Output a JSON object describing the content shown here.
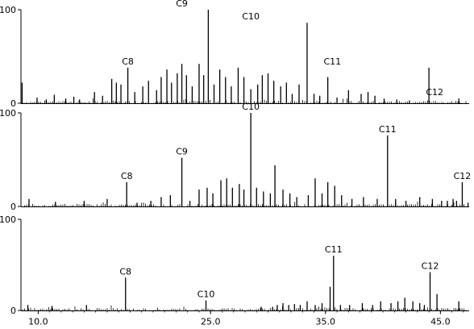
{
  "chart_data": {
    "type": "line",
    "xlim": [
      8.5,
      47.5
    ],
    "ylim": [
      0,
      100
    ],
    "x_ticks": [
      {
        "value": 10,
        "label": "10.0"
      },
      {
        "value": 25,
        "label": "25.0"
      },
      {
        "value": 35,
        "label": "35.0"
      },
      {
        "value": 45,
        "label": "45.0"
      }
    ],
    "y_ticks": [
      {
        "value": 0,
        "label": "0"
      },
      {
        "value": 100,
        "label": "100"
      }
    ],
    "panels": [
      {
        "peaks": [
          {
            "x": 8.6,
            "y": 22
          },
          {
            "x": 9.9,
            "y": 6
          },
          {
            "x": 10.7,
            "y": 4
          },
          {
            "x": 11.4,
            "y": 9
          },
          {
            "x": 12.4,
            "y": 5
          },
          {
            "x": 13.1,
            "y": 7
          },
          {
            "x": 13.6,
            "y": 4
          },
          {
            "x": 14.9,
            "y": 12
          },
          {
            "x": 15.6,
            "y": 8
          },
          {
            "x": 16.4,
            "y": 26
          },
          {
            "x": 16.8,
            "y": 22
          },
          {
            "x": 17.2,
            "y": 20
          },
          {
            "x": 17.8,
            "y": 38
          },
          {
            "x": 18.4,
            "y": 12
          },
          {
            "x": 19.1,
            "y": 18
          },
          {
            "x": 19.6,
            "y": 24
          },
          {
            "x": 20.3,
            "y": 14
          },
          {
            "x": 20.7,
            "y": 28
          },
          {
            "x": 21.2,
            "y": 36
          },
          {
            "x": 21.6,
            "y": 22
          },
          {
            "x": 22.1,
            "y": 32
          },
          {
            "x": 22.5,
            "y": 42
          },
          {
            "x": 22.9,
            "y": 30
          },
          {
            "x": 23.4,
            "y": 18
          },
          {
            "x": 24.0,
            "y": 42
          },
          {
            "x": 24.4,
            "y": 30
          },
          {
            "x": 24.8,
            "y": 100
          },
          {
            "x": 25.3,
            "y": 20
          },
          {
            "x": 25.8,
            "y": 36
          },
          {
            "x": 26.3,
            "y": 28
          },
          {
            "x": 26.8,
            "y": 18
          },
          {
            "x": 27.4,
            "y": 38
          },
          {
            "x": 27.9,
            "y": 28
          },
          {
            "x": 28.5,
            "y": 15
          },
          {
            "x": 29.1,
            "y": 20
          },
          {
            "x": 29.5,
            "y": 30
          },
          {
            "x": 30.0,
            "y": 32
          },
          {
            "x": 30.5,
            "y": 24
          },
          {
            "x": 31.1,
            "y": 18
          },
          {
            "x": 31.6,
            "y": 22
          },
          {
            "x": 32.1,
            "y": 10
          },
          {
            "x": 32.7,
            "y": 20
          },
          {
            "x": 33.4,
            "y": 86
          },
          {
            "x": 34.0,
            "y": 10
          },
          {
            "x": 34.5,
            "y": 8
          },
          {
            "x": 35.2,
            "y": 28
          },
          {
            "x": 36.0,
            "y": 6
          },
          {
            "x": 37.0,
            "y": 14
          },
          {
            "x": 38.1,
            "y": 10
          },
          {
            "x": 38.7,
            "y": 12
          },
          {
            "x": 39.3,
            "y": 8
          },
          {
            "x": 40.1,
            "y": 5
          },
          {
            "x": 41.2,
            "y": 4
          },
          {
            "x": 42.3,
            "y": 3
          },
          {
            "x": 44.0,
            "y": 38
          },
          {
            "x": 46.6,
            "y": 5
          }
        ],
        "labels": [
          {
            "text": "C8",
            "x": 17.8,
            "y": 38
          },
          {
            "text": "C9",
            "x": 22.5,
            "y": 100
          },
          {
            "text": "C10",
            "x": 28.5,
            "y": 86
          },
          {
            "text": "C11",
            "x": 35.6,
            "y": 38
          },
          {
            "text": "C12",
            "x": 44.5,
            "y": 5
          }
        ]
      },
      {
        "peaks": [
          {
            "x": 9.2,
            "y": 8
          },
          {
            "x": 11.5,
            "y": 5
          },
          {
            "x": 14.0,
            "y": 6
          },
          {
            "x": 16.0,
            "y": 8
          },
          {
            "x": 17.7,
            "y": 26
          },
          {
            "x": 18.6,
            "y": 4
          },
          {
            "x": 19.8,
            "y": 6
          },
          {
            "x": 20.7,
            "y": 10
          },
          {
            "x": 21.5,
            "y": 12
          },
          {
            "x": 22.5,
            "y": 52
          },
          {
            "x": 23.2,
            "y": 6
          },
          {
            "x": 24.0,
            "y": 18
          },
          {
            "x": 24.7,
            "y": 20
          },
          {
            "x": 25.2,
            "y": 14
          },
          {
            "x": 25.9,
            "y": 28
          },
          {
            "x": 26.4,
            "y": 30
          },
          {
            "x": 26.9,
            "y": 20
          },
          {
            "x": 27.5,
            "y": 24
          },
          {
            "x": 27.9,
            "y": 18
          },
          {
            "x": 28.5,
            "y": 100
          },
          {
            "x": 29.0,
            "y": 20
          },
          {
            "x": 29.6,
            "y": 16
          },
          {
            "x": 30.2,
            "y": 14
          },
          {
            "x": 30.6,
            "y": 44
          },
          {
            "x": 31.3,
            "y": 18
          },
          {
            "x": 31.9,
            "y": 14
          },
          {
            "x": 32.5,
            "y": 10
          },
          {
            "x": 33.5,
            "y": 12
          },
          {
            "x": 34.1,
            "y": 30
          },
          {
            "x": 34.7,
            "y": 14
          },
          {
            "x": 35.2,
            "y": 26
          },
          {
            "x": 35.8,
            "y": 22
          },
          {
            "x": 36.4,
            "y": 12
          },
          {
            "x": 37.3,
            "y": 8
          },
          {
            "x": 38.3,
            "y": 10
          },
          {
            "x": 39.5,
            "y": 8
          },
          {
            "x": 40.4,
            "y": 76
          },
          {
            "x": 41.1,
            "y": 8
          },
          {
            "x": 42.0,
            "y": 6
          },
          {
            "x": 43.2,
            "y": 10
          },
          {
            "x": 44.3,
            "y": 8
          },
          {
            "x": 45.1,
            "y": 6
          },
          {
            "x": 45.6,
            "y": 6
          },
          {
            "x": 46.1,
            "y": 8
          },
          {
            "x": 46.4,
            "y": 6
          },
          {
            "x": 46.9,
            "y": 26
          },
          {
            "x": 47.4,
            "y": 4
          }
        ],
        "labels": [
          {
            "text": "C8",
            "x": 17.7,
            "y": 26
          },
          {
            "text": "C9",
            "x": 22.5,
            "y": 52
          },
          {
            "text": "C10",
            "x": 28.5,
            "y": 100
          },
          {
            "text": "C11",
            "x": 40.4,
            "y": 76
          },
          {
            "text": "C12",
            "x": 46.9,
            "y": 26
          }
        ]
      },
      {
        "peaks": [
          {
            "x": 9.1,
            "y": 6
          },
          {
            "x": 11.2,
            "y": 5
          },
          {
            "x": 14.2,
            "y": 6
          },
          {
            "x": 17.6,
            "y": 36
          },
          {
            "x": 24.6,
            "y": 11
          },
          {
            "x": 29.4,
            "y": 4
          },
          {
            "x": 30.4,
            "y": 4
          },
          {
            "x": 30.8,
            "y": 6
          },
          {
            "x": 31.3,
            "y": 8
          },
          {
            "x": 31.8,
            "y": 6
          },
          {
            "x": 32.3,
            "y": 7
          },
          {
            "x": 32.8,
            "y": 6
          },
          {
            "x": 33.4,
            "y": 10
          },
          {
            "x": 34.1,
            "y": 6
          },
          {
            "x": 34.7,
            "y": 8
          },
          {
            "x": 35.4,
            "y": 26
          },
          {
            "x": 35.7,
            "y": 60
          },
          {
            "x": 36.3,
            "y": 6
          },
          {
            "x": 37.1,
            "y": 6
          },
          {
            "x": 38.2,
            "y": 8
          },
          {
            "x": 39.1,
            "y": 6
          },
          {
            "x": 39.8,
            "y": 10
          },
          {
            "x": 40.7,
            "y": 8
          },
          {
            "x": 41.3,
            "y": 10
          },
          {
            "x": 41.9,
            "y": 14
          },
          {
            "x": 42.6,
            "y": 10
          },
          {
            "x": 43.2,
            "y": 8
          },
          {
            "x": 43.6,
            "y": 6
          },
          {
            "x": 44.1,
            "y": 42
          },
          {
            "x": 44.7,
            "y": 18
          },
          {
            "x": 46.6,
            "y": 10
          }
        ],
        "labels": [
          {
            "text": "C8",
            "x": 17.6,
            "y": 36
          },
          {
            "text": "C10",
            "x": 24.6,
            "y": 11
          },
          {
            "text": "C11",
            "x": 35.7,
            "y": 60
          },
          {
            "text": "C12",
            "x": 44.1,
            "y": 42
          }
        ]
      }
    ]
  }
}
